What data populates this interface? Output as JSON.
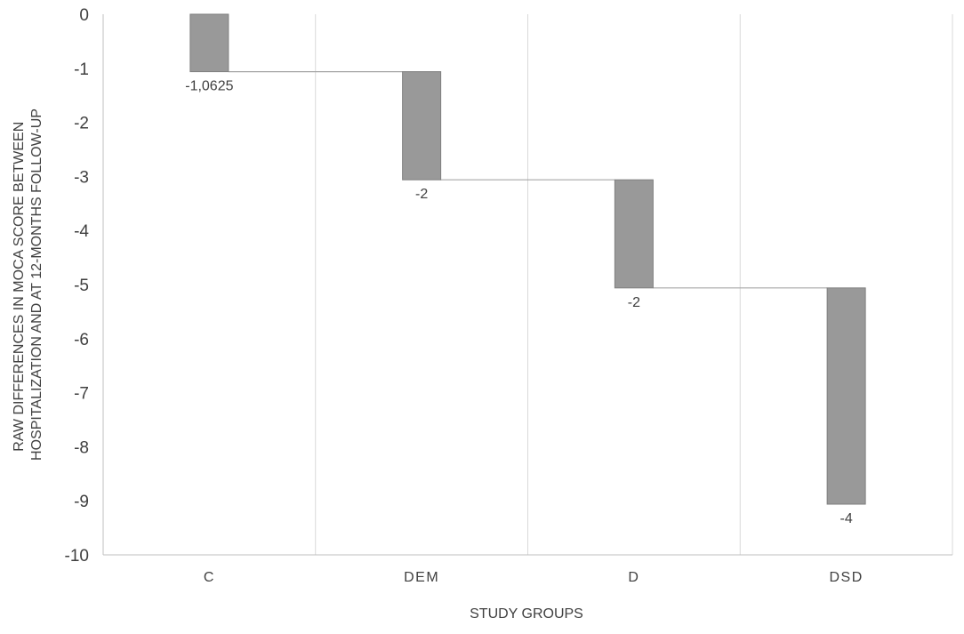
{
  "chart_data": {
    "type": "bar",
    "subtype": "waterfall",
    "categories": [
      "C",
      "DEM",
      "D",
      "DSD"
    ],
    "values": [
      -1.0625,
      -2,
      -2,
      -4
    ],
    "data_labels": [
      "-1,0625",
      "-2",
      "-2",
      "-4"
    ],
    "xlabel": "STUDY GROUPS",
    "ylabel_lines": [
      "RAW DIFFERENCES IN MOCA SCORE BETWEEN",
      "HOSPITALIZATION AND AT 12-MONTHS FOLLOW-UP"
    ],
    "ylim": [
      -10,
      0
    ],
    "yticks": [
      0,
      -1,
      -2,
      -3,
      -4,
      -5,
      -6,
      -7,
      -8,
      -9,
      -10
    ],
    "ytick_labels": [
      "0",
      "-1",
      "-2",
      "-3",
      "-4",
      "-5",
      "-6",
      "-7",
      "-8",
      "-9",
      "-10"
    ],
    "grid": "vertical",
    "connector_lines": true,
    "bar_color": "#999999",
    "bar_border_color": "#7f7f7f",
    "connector_color": "#a6a6a6",
    "gridline_color": "#d9d9d9",
    "axis_color": "#bfbfbf",
    "text_color": "#404040"
  }
}
